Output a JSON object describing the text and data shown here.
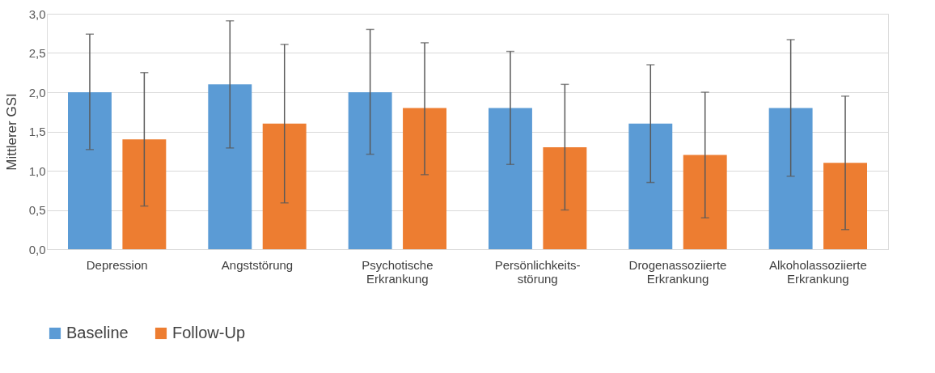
{
  "chart_data": {
    "type": "bar",
    "ylabel": "Mittlerer GSI",
    "categories": [
      "Depression",
      "Angststörung",
      "Psychotische\nErkrankung",
      "Persönlichkeits-\nstörung",
      "Drogenassoziierte\nErkrankung",
      "Alkoholassoziierte\nErkrankung"
    ],
    "series": [
      {
        "name": "Baseline",
        "color": "#5b9bd5",
        "values": [
          2.0,
          2.1,
          2.0,
          1.8,
          1.6,
          1.8
        ],
        "errors": [
          [
            1.27,
            2.74
          ],
          [
            1.29,
            2.91
          ],
          [
            1.21,
            2.8
          ],
          [
            1.08,
            2.52
          ],
          [
            0.85,
            2.35
          ],
          [
            0.93,
            2.67
          ]
        ]
      },
      {
        "name": "Follow-Up",
        "color": "#ed7d31",
        "values": [
          1.4,
          1.6,
          1.8,
          1.3,
          1.2,
          1.1
        ],
        "errors": [
          [
            0.55,
            2.25
          ],
          [
            0.59,
            2.61
          ],
          [
            0.95,
            2.63
          ],
          [
            0.5,
            2.1
          ],
          [
            0.4,
            2.0
          ],
          [
            0.25,
            1.95
          ]
        ]
      }
    ],
    "ylim": [
      0,
      3.0
    ],
    "yticks": [
      {
        "value": 0,
        "label": "0,0"
      },
      {
        "value": 0.5,
        "label": "0,5"
      },
      {
        "value": 1.0,
        "label": "1,0"
      },
      {
        "value": 1.5,
        "label": "1,5"
      },
      {
        "value": 2.0,
        "label": "2,0"
      },
      {
        "value": 2.5,
        "label": "2,5"
      },
      {
        "value": 3.0,
        "label": "3,0"
      }
    ],
    "grid": "y",
    "legend": "bottom"
  }
}
